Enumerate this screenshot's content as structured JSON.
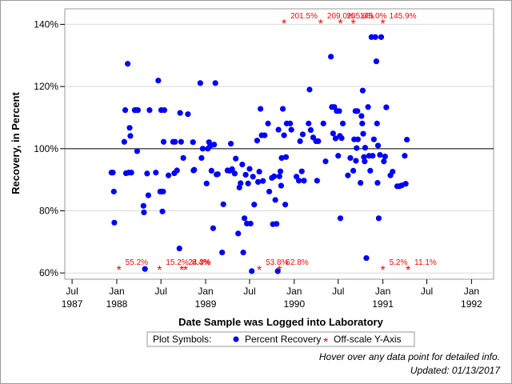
{
  "chart_data": {
    "type": "scatter",
    "title": "",
    "xlabel": "Date Sample was Logged into Laboratory",
    "ylabel": "Recovery, in Percent",
    "xlim": [
      "1987-06-01",
      "1992-04-01"
    ],
    "ylim": [
      58,
      145
    ],
    "y_ticks": [
      60,
      80,
      100,
      120,
      140
    ],
    "y_tick_labels": [
      "60%",
      "80%",
      "100%",
      "120%",
      "140%"
    ],
    "x_ticks": [
      "1987-07-01",
      "1988-01-01",
      "1988-07-01",
      "1989-01-01",
      "1989-07-01",
      "1990-01-01",
      "1990-07-01",
      "1991-01-01",
      "1991-07-01",
      "1992-01-01"
    ],
    "x_tick_labels": [
      [
        "Jul",
        "1987"
      ],
      [
        "Jan",
        "1988"
      ],
      [
        "Jul",
        ""
      ],
      [
        "Jan",
        "1989"
      ],
      [
        "Jul",
        ""
      ],
      [
        "Jan",
        "1990"
      ],
      [
        "Jul",
        ""
      ],
      [
        "Jan",
        "1991"
      ],
      [
        "Jul",
        ""
      ],
      [
        "Jan",
        "1992"
      ]
    ],
    "reference_line": 100,
    "grid": "horizontal",
    "colors": {
      "recovery": "#0000ff",
      "offscale": "#ff0000",
      "grid": "#d9d9d9",
      "reference": "#000000"
    },
    "series": [
      {
        "name": "Percent Recovery",
        "marker": "circle",
        "points": [
          [
            "1987-12-10",
            92.3
          ],
          [
            "1987-12-16",
            92.3
          ],
          [
            "1987-12-20",
            86.2
          ],
          [
            "1987-12-22",
            76.2
          ],
          [
            "1988-02-01",
            102.2
          ],
          [
            "1988-02-05",
            112.4
          ],
          [
            "1988-02-08",
            92.1
          ],
          [
            "1988-02-15",
            127.3
          ],
          [
            "1988-02-20",
            92.3
          ],
          [
            "1988-02-23",
            106.7
          ],
          [
            "1988-02-26",
            104.1
          ],
          [
            "1988-03-01",
            92.3
          ],
          [
            "1988-03-15",
            112.4
          ],
          [
            "1988-03-20",
            112.4
          ],
          [
            "1988-03-25",
            99.2
          ],
          [
            "1988-03-28",
            112.4
          ],
          [
            "1988-04-20",
            81.6
          ],
          [
            "1988-04-22",
            79.5
          ],
          [
            "1988-04-26",
            61.3
          ],
          [
            "1988-05-05",
            92.0
          ],
          [
            "1988-05-10",
            85.0
          ],
          [
            "1988-05-15",
            112.4
          ],
          [
            "1988-06-10",
            92.3
          ],
          [
            "1988-06-20",
            121.9
          ],
          [
            "1988-06-28",
            86.2
          ],
          [
            "1988-07-02",
            112.4
          ],
          [
            "1988-07-05",
            86.2
          ],
          [
            "1988-07-07",
            79.8
          ],
          [
            "1988-07-10",
            86.2
          ],
          [
            "1988-07-12",
            102.2
          ],
          [
            "1988-07-15",
            112.4
          ],
          [
            "1988-08-01",
            91.4
          ],
          [
            "1988-08-20",
            102.2
          ],
          [
            "1988-08-25",
            92.1
          ],
          [
            "1988-08-28",
            102.2
          ],
          [
            "1988-09-05",
            93.0
          ],
          [
            "1988-09-15",
            67.9
          ],
          [
            "1988-09-18",
            111.5
          ],
          [
            "1988-09-22",
            102.2
          ],
          [
            "1988-10-01",
            97.0
          ],
          [
            "1988-10-20",
            111.1
          ],
          [
            "1988-11-10",
            102.1
          ],
          [
            "1988-11-12",
            93.0
          ],
          [
            "1988-11-15",
            93.2
          ],
          [
            "1988-12-10",
            121.1
          ],
          [
            "1988-12-15",
            97.0
          ],
          [
            "1988-12-20",
            100.0
          ],
          [
            "1989-01-05",
            88.8
          ],
          [
            "1989-01-10",
            100.0
          ],
          [
            "1989-01-15",
            102.1
          ],
          [
            "1989-01-20",
            100.9
          ],
          [
            "1989-01-25",
            92.9
          ],
          [
            "1989-02-01",
            74.4
          ],
          [
            "1989-02-05",
            101.3
          ],
          [
            "1989-02-10",
            121.1
          ],
          [
            "1989-02-15",
            91.7
          ],
          [
            "1989-02-20",
            91.8
          ],
          [
            "1989-03-10",
            66.6
          ],
          [
            "1989-03-15",
            82.1
          ],
          [
            "1989-04-01",
            93.0
          ],
          [
            "1989-04-10",
            92.9
          ],
          [
            "1989-04-15",
            101.6
          ],
          [
            "1989-04-20",
            93.4
          ],
          [
            "1989-05-01",
            92.0
          ],
          [
            "1989-05-05",
            96.8
          ],
          [
            "1989-05-15",
            72.7
          ],
          [
            "1989-05-20",
            87.5
          ],
          [
            "1989-05-25",
            88.9
          ],
          [
            "1989-06-01",
            94.9
          ],
          [
            "1989-06-05",
            66.6
          ],
          [
            "1989-06-10",
            77.6
          ],
          [
            "1989-06-15",
            91.6
          ],
          [
            "1989-06-20",
            75.9
          ],
          [
            "1989-06-25",
            88.8
          ],
          [
            "1989-07-01",
            93.5
          ],
          [
            "1989-07-05",
            75.9
          ],
          [
            "1989-07-10",
            60.6
          ],
          [
            "1989-07-15",
            91.0
          ],
          [
            "1989-07-20",
            82.0
          ],
          [
            "1989-08-01",
            102.6
          ],
          [
            "1989-08-05",
            89.3
          ],
          [
            "1989-08-10",
            92.6
          ],
          [
            "1989-08-15",
            112.8
          ],
          [
            "1989-08-20",
            104.3
          ],
          [
            "1989-08-25",
            89.6
          ],
          [
            "1989-09-01",
            104.3
          ],
          [
            "1989-09-15",
            108.1
          ],
          [
            "1989-09-20",
            86.2
          ],
          [
            "1989-10-01",
            90.6
          ],
          [
            "1989-10-05",
            75.7
          ],
          [
            "1989-10-10",
            91.1
          ],
          [
            "1989-10-15",
            83.5
          ],
          [
            "1989-10-20",
            75.8
          ],
          [
            "1989-10-25",
            60.6
          ],
          [
            "1989-10-28",
            106.1
          ],
          [
            "1989-11-01",
            91.1
          ],
          [
            "1989-11-05",
            92.7
          ],
          [
            "1989-11-08",
            88.1
          ],
          [
            "1989-11-10",
            97.0
          ],
          [
            "1989-11-15",
            112.8
          ],
          [
            "1989-11-20",
            104.3
          ],
          [
            "1989-11-25",
            82.0
          ],
          [
            "1989-11-28",
            97.3
          ],
          [
            "1989-12-01",
            108.1
          ],
          [
            "1989-12-15",
            108.1
          ],
          [
            "1989-12-20",
            106.1
          ],
          [
            "1990-01-10",
            91.0
          ],
          [
            "1990-01-20",
            89.7
          ],
          [
            "1990-01-25",
            102.4
          ],
          [
            "1990-02-01",
            92.7
          ],
          [
            "1990-02-05",
            104.6
          ],
          [
            "1990-02-10",
            89.7
          ],
          [
            "1990-03-01",
            108.1
          ],
          [
            "1990-03-05",
            119.0
          ],
          [
            "1990-03-10",
            106.0
          ],
          [
            "1990-03-20",
            103.6
          ],
          [
            "1990-04-01",
            102.4
          ],
          [
            "1990-04-05",
            89.7
          ],
          [
            "1990-04-10",
            102.4
          ],
          [
            "1990-05-01",
            108.1
          ],
          [
            "1990-05-10",
            95.9
          ],
          [
            "1990-06-01",
            129.6
          ],
          [
            "1990-06-05",
            113.4
          ],
          [
            "1990-06-10",
            104.9
          ],
          [
            "1990-06-15",
            113.4
          ],
          [
            "1990-06-20",
            103.3
          ],
          [
            "1990-06-25",
            112.1
          ],
          [
            "1990-07-01",
            97.7
          ],
          [
            "1990-07-05",
            112.1
          ],
          [
            "1990-07-08",
            104.1
          ],
          [
            "1990-07-10",
            77.6
          ],
          [
            "1990-07-15",
            103.4
          ],
          [
            "1990-07-20",
            108.1
          ],
          [
            "1990-08-10",
            91.4
          ],
          [
            "1990-08-20",
            97.0
          ],
          [
            "1990-09-01",
            92.9
          ],
          [
            "1990-09-05",
            103.0
          ],
          [
            "1990-09-10",
            112.1
          ],
          [
            "1990-09-12",
            96.1
          ],
          [
            "1990-09-15",
            100.2
          ],
          [
            "1990-09-18",
            112.1
          ],
          [
            "1990-09-20",
            103.0
          ],
          [
            "1990-10-01",
            89.0
          ],
          [
            "1990-10-05",
            110.5
          ],
          [
            "1990-10-08",
            108.1
          ],
          [
            "1990-10-10",
            118.7
          ],
          [
            "1990-10-12",
            104.8
          ],
          [
            "1990-10-15",
            97.3
          ],
          [
            "1990-10-18",
            95.9
          ],
          [
            "1990-10-20",
            100.3
          ],
          [
            "1990-10-25",
            64.8
          ],
          [
            "1990-11-01",
            113.4
          ],
          [
            "1990-11-05",
            97.7
          ],
          [
            "1990-11-10",
            92.9
          ],
          [
            "1990-11-15",
            135.9
          ],
          [
            "1990-11-20",
            97.7
          ],
          [
            "1990-11-25",
            103.0
          ],
          [
            "1990-12-01",
            135.9
          ],
          [
            "1990-12-05",
            128.1
          ],
          [
            "1990-12-08",
            108.1
          ],
          [
            "1990-12-10",
            89.0
          ],
          [
            "1990-12-12",
            101.0
          ],
          [
            "1990-12-15",
            77.6
          ],
          [
            "1990-12-20",
            98.0
          ],
          [
            "1990-12-25",
            135.9
          ],
          [
            "1991-01-05",
            95.9
          ],
          [
            "1991-01-10",
            97.5
          ],
          [
            "1991-01-15",
            113.3
          ],
          [
            "1991-02-01",
            91.4
          ],
          [
            "1991-02-10",
            92.6
          ],
          [
            "1991-03-01",
            87.9
          ],
          [
            "1991-03-10",
            87.9
          ],
          [
            "1991-03-20",
            88.2
          ],
          [
            "1991-04-01",
            97.7
          ],
          [
            "1991-04-05",
            88.7
          ],
          [
            "1991-04-10",
            102.9
          ]
        ]
      },
      {
        "name": "Off-scale Y-Axis",
        "marker": "asterisk",
        "high_points": [
          [
            "1989-11-20",
            "201.5%"
          ],
          [
            "1990-04-20",
            "209.0%"
          ],
          [
            "1990-07-10",
            "205.6%"
          ],
          [
            "1990-09-01",
            "145.0%"
          ],
          [
            "1991-01-01",
            "145.9%"
          ]
        ],
        "low_points": [
          [
            "1988-01-10",
            "55.2%"
          ],
          [
            "1988-06-25",
            "15.2%"
          ],
          [
            "1988-09-25",
            "24.3%"
          ],
          [
            "1988-10-10",
            "8.4%"
          ],
          [
            "1989-08-10",
            "53.8%"
          ],
          [
            "1989-11-01",
            "62.8%"
          ],
          [
            "1991-01-01",
            "5.2%"
          ],
          [
            "1991-04-15",
            "11.1%"
          ]
        ]
      }
    ]
  },
  "legend": {
    "title": "Plot Symbols:",
    "items": [
      {
        "label": "Percent Recovery",
        "symbol": "●",
        "color": "#0000ff"
      },
      {
        "label": "Off-scale Y-Axis",
        "symbol": "*",
        "color": "#ff0000"
      }
    ]
  },
  "notes": {
    "hover": "Hover over any data point for detailed info.",
    "updated": "Updated: 01/13/2017"
  }
}
